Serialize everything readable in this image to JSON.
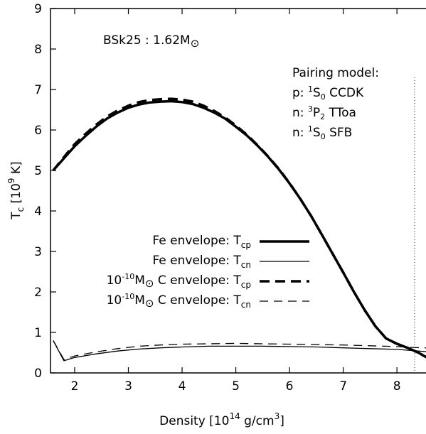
{
  "chart_data": {
    "type": "line",
    "title": "",
    "annotation": {
      "model_prefix": "BSk25 : 1.62M",
      "model_symbol": "⊙"
    },
    "pairing_box": {
      "header": "Pairing model:",
      "lines": [
        {
          "prefix": "p: ",
          "sup": "1",
          "base": "S",
          "sub": "0",
          "suffix": " CCDK"
        },
        {
          "prefix": "n: ",
          "sup": "3",
          "base": "P",
          "sub": "2",
          "suffix": " TToa"
        },
        {
          "prefix": "n: ",
          "sup": "1",
          "base": "S",
          "sub": "0",
          "suffix": " SFB"
        }
      ]
    },
    "xlabel": {
      "main": "Density [10",
      "sup1": "14",
      "mid": " g/cm",
      "sup2": "3",
      "end": "]"
    },
    "ylabel": {
      "main": "T",
      "sub": "c",
      "rest": " [10",
      "sup": "9",
      "end": " K]"
    },
    "xlim": [
      1.55,
      8.7
    ],
    "ylim": [
      0,
      9
    ],
    "xticks": [
      "2",
      "3",
      "4",
      "5",
      "6",
      "7",
      "8"
    ],
    "yticks": [
      "0",
      "1",
      "2",
      "3",
      "4",
      "5",
      "6",
      "7",
      "8",
      "9"
    ],
    "vline_x": 8.33,
    "legend": {
      "placement": "center-left",
      "entries": [
        {
          "main": "Fe envelope: T",
          "sub": "cp"
        },
        {
          "main": "Fe envelope: T",
          "sub": "cn"
        },
        {
          "pre": "10",
          "sup": "-10",
          "mid": "M",
          "sym": "⊙",
          "main": " C envelope: T",
          "sub": "cp"
        },
        {
          "pre": "10",
          "sup": "-10",
          "mid": "M",
          "sym": "⊙",
          "main": " C envelope: T",
          "sub": "cn"
        }
      ]
    },
    "series": [
      {
        "style": "thick-solid",
        "x": [
          1.6,
          1.8,
          2.0,
          2.2,
          2.4,
          2.6,
          2.8,
          3.0,
          3.2,
          3.4,
          3.6,
          3.8,
          4.0,
          4.2,
          4.4,
          4.6,
          4.8,
          5.0,
          5.2,
          5.4,
          5.6,
          5.8,
          6.0,
          6.2,
          6.4,
          6.6,
          6.8,
          7.0,
          7.2,
          7.4,
          7.6,
          7.8,
          8.0,
          8.2,
          8.4,
          8.6,
          8.7
        ],
        "y": [
          5.0,
          5.3,
          5.6,
          5.85,
          6.08,
          6.28,
          6.43,
          6.55,
          6.63,
          6.68,
          6.7,
          6.71,
          6.69,
          6.64,
          6.55,
          6.43,
          6.28,
          6.08,
          5.87,
          5.62,
          5.34,
          5.03,
          4.68,
          4.3,
          3.88,
          3.42,
          2.95,
          2.48,
          2.0,
          1.55,
          1.15,
          0.85,
          0.72,
          0.62,
          0.5,
          0.35,
          0.3
        ]
      },
      {
        "style": "thin-solid",
        "x": [
          1.6,
          1.8,
          2.0,
          2.4,
          2.8,
          3.2,
          3.6,
          4.0,
          4.5,
          5.0,
          5.5,
          6.0,
          6.5,
          7.0,
          7.5,
          8.0,
          8.3,
          8.5,
          8.7
        ],
        "y": [
          0.8,
          0.3,
          0.38,
          0.47,
          0.54,
          0.59,
          0.62,
          0.64,
          0.66,
          0.66,
          0.66,
          0.65,
          0.64,
          0.62,
          0.6,
          0.58,
          0.55,
          0.53,
          0.52
        ]
      },
      {
        "style": "thick-dashed",
        "x": [
          1.6,
          1.8,
          2.0,
          2.2,
          2.4,
          2.6,
          2.8,
          3.0,
          3.2,
          3.4,
          3.6,
          3.8,
          4.0,
          4.2,
          4.4,
          4.6,
          4.8,
          5.0,
          5.2,
          5.4,
          5.6,
          5.8,
          6.0,
          6.2,
          6.4,
          6.6,
          6.8,
          7.0,
          7.2,
          7.4,
          7.6,
          7.8,
          8.0,
          8.2,
          8.4,
          8.6,
          8.7
        ],
        "y": [
          5.0,
          5.33,
          5.65,
          5.9,
          6.13,
          6.33,
          6.48,
          6.6,
          6.69,
          6.74,
          6.76,
          6.77,
          6.75,
          6.7,
          6.6,
          6.47,
          6.31,
          6.11,
          5.89,
          5.63,
          5.35,
          5.04,
          4.69,
          4.3,
          3.88,
          3.42,
          2.95,
          2.48,
          2.0,
          1.55,
          1.15,
          0.85,
          0.72,
          0.62,
          0.5,
          0.35,
          0.3
        ]
      },
      {
        "style": "thin-dashed",
        "x": [
          1.6,
          1.8,
          2.0,
          2.4,
          2.8,
          3.2,
          3.6,
          4.0,
          4.5,
          5.0,
          5.5,
          6.0,
          6.5,
          7.0,
          7.5,
          8.0,
          8.3,
          8.5,
          8.7
        ],
        "y": [
          0.8,
          0.33,
          0.42,
          0.52,
          0.6,
          0.66,
          0.69,
          0.71,
          0.72,
          0.73,
          0.72,
          0.71,
          0.7,
          0.69,
          0.67,
          0.65,
          0.63,
          0.62,
          0.61
        ]
      }
    ]
  }
}
